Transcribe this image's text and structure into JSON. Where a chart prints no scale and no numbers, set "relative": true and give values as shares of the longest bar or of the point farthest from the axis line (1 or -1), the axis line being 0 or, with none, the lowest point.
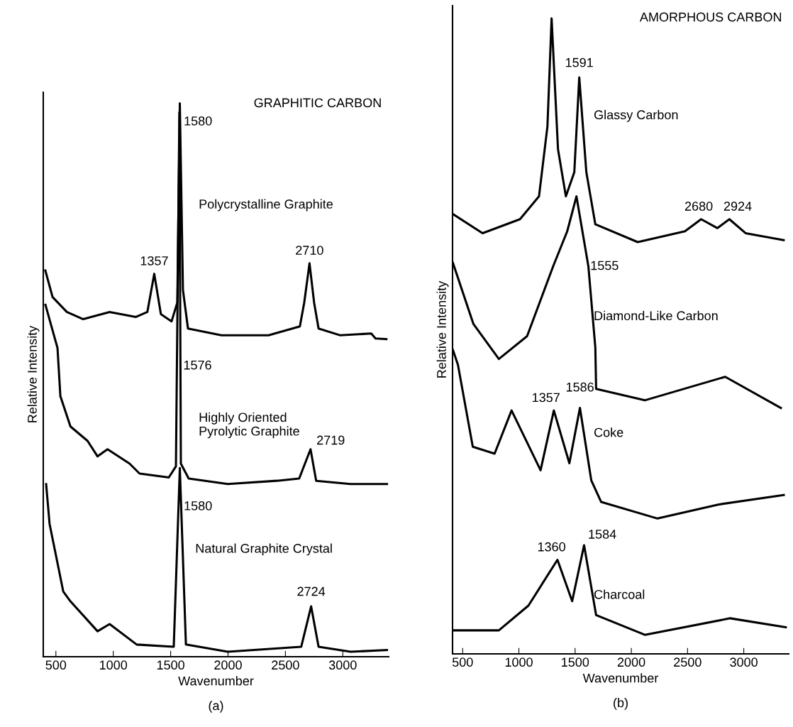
{
  "chart_data": [
    {
      "type": "line",
      "relative": true,
      "title": "GRAPHITIC CARBON",
      "xlabel": "Wavenumber",
      "ylabel": "Relative Intensity",
      "xlim": [
        390,
        3400
      ],
      "xticks": [
        500,
        1000,
        1500,
        2000,
        2500,
        3000
      ],
      "grid": false,
      "marker": "none",
      "line_style": "solid",
      "series": [
        {
          "name": "Polycrystalline Graphite",
          "color": "#000000",
          "x": [
            408,
            471,
            595,
            738,
            968,
            1198,
            1297,
            1357,
            1415,
            1508,
            1558,
            1580,
            1607,
            1651,
            1943,
            2353,
            2626,
            2664,
            2710,
            2750,
            2789,
            2975,
            3248,
            3285,
            3380
          ],
          "values": [
            0.698,
            0.65,
            0.623,
            0.61,
            0.623,
            0.614,
            0.623,
            0.692,
            0.619,
            0.606,
            0.64,
            1.0,
            0.663,
            0.593,
            0.581,
            0.581,
            0.597,
            0.64,
            0.711,
            0.64,
            0.593,
            0.581,
            0.584,
            0.575,
            0.574
          ]
        },
        {
          "name": "Highly Oriented\nPyrolytic Graphite",
          "color": "#000000",
          "x": [
            409,
            514,
            539,
            627,
            776,
            863,
            950,
            1142,
            1229,
            1484,
            1546,
            1576,
            1589,
            1657,
            1998,
            2427,
            2620,
            2719,
            2768,
            3066,
            3385
          ],
          "values": [
            0.636,
            0.558,
            0.471,
            0.416,
            0.39,
            0.362,
            0.375,
            0.349,
            0.331,
            0.324,
            0.344,
            0.984,
            0.349,
            0.322,
            0.312,
            0.318,
            0.322,
            0.375,
            0.318,
            0.312,
            0.312
          ]
        },
        {
          "name": "Natural Graphite Crystal",
          "color": "#000000",
          "x": [
            415,
            445,
            564,
            627,
            863,
            968,
            1204,
            1527,
            1580,
            1633,
            1998,
            2638,
            2724,
            2789,
            3068,
            3385
          ],
          "values": [
            0.312,
            0.24,
            0.118,
            0.1,
            0.046,
            0.059,
            0.022,
            0.018,
            0.341,
            0.022,
            0.009,
            0.018,
            0.091,
            0.018,
            0.009,
            0.012
          ]
        }
      ],
      "annotations": [
        {
          "text": "1580",
          "x": 1580,
          "y": 1.0
        },
        {
          "text": "1357",
          "x": 1357,
          "y": 0.692
        },
        {
          "text": "2710",
          "x": 2710,
          "y": 0.711
        },
        {
          "text": "1576",
          "x": 1576,
          "y": 0.5
        },
        {
          "text": "2719",
          "x": 2719,
          "y": 0.375
        },
        {
          "text": "1580",
          "x": 1580,
          "y": 0.26
        },
        {
          "text": "2724",
          "x": 2724,
          "y": 0.091
        },
        "(a)"
      ]
    },
    {
      "type": "line",
      "relative": true,
      "title": "AMORPHOUS CARBON",
      "xlabel": "Wavenumber",
      "ylabel": "Relative Intensity",
      "xlim": [
        410,
        3400
      ],
      "xticks": [
        500,
        1000,
        1500,
        2000,
        2500,
        3000
      ],
      "grid": false,
      "marker": "none",
      "line_style": "solid",
      "series": [
        {
          "name": "Glassy Carbon",
          "color": "#000000",
          "x": [
            414,
            677,
            1010,
            1179,
            1254,
            1291,
            1348,
            1418,
            1493,
            1537,
            1600,
            1680,
            2057,
            2477,
            2621,
            2766,
            2872,
            3016,
            3355
          ],
          "values": [
            0.692,
            0.662,
            0.684,
            0.72,
            0.83,
            1.0,
            0.794,
            0.72,
            0.758,
            0.907,
            0.758,
            0.676,
            0.648,
            0.665,
            0.684,
            0.67,
            0.684,
            0.662,
            0.651
          ]
        },
        {
          "name": "Diamond-Like Carbon",
          "color": "#000000",
          "x": [
            414,
            596,
            822,
            1073,
            1305,
            1430,
            1512,
            1618,
            1680,
            1687,
            2120,
            2835,
            3330
          ],
          "values": [
            0.615,
            0.519,
            0.464,
            0.5,
            0.61,
            0.665,
            0.72,
            0.61,
            0.482,
            0.417,
            0.399,
            0.436,
            0.387
          ]
        },
        {
          "name": "Coke",
          "color": "#000000",
          "x": [
            414,
            458,
            590,
            784,
            935,
            1193,
            1311,
            1449,
            1543,
            1644,
            1732,
            2233,
            2773,
            3356
          ],
          "values": [
            0.478,
            0.455,
            0.326,
            0.315,
            0.383,
            0.289,
            0.383,
            0.3,
            0.387,
            0.273,
            0.239,
            0.213,
            0.235,
            0.25
          ]
        },
        {
          "name": "Charcoal",
          "color": "#000000",
          "x": [
            414,
            822,
            1085,
            1343,
            1474,
            1580,
            1687,
            2120,
            2879,
            3374
          ],
          "values": [
            0.037,
            0.037,
            0.076,
            0.148,
            0.083,
            0.171,
            0.061,
            0.03,
            0.056,
            0.042
          ]
        }
      ],
      "annotations": [
        {
          "text": "1591",
          "x": 1537,
          "y": 0.907
        },
        {
          "text": "2680",
          "x": 2621,
          "y": 0.684
        },
        {
          "text": "2924",
          "x": 2872,
          "y": 0.684
        },
        {
          "text": "1555",
          "x": 1600,
          "y": 0.6
        },
        {
          "text": "1357",
          "x": 1311,
          "y": 0.383
        },
        {
          "text": "1586",
          "x": 1543,
          "y": 0.387
        },
        {
          "text": "1360",
          "x": 1343,
          "y": 0.148
        },
        {
          "text": "1584",
          "x": 1580,
          "y": 0.171
        },
        "(b)"
      ]
    }
  ]
}
